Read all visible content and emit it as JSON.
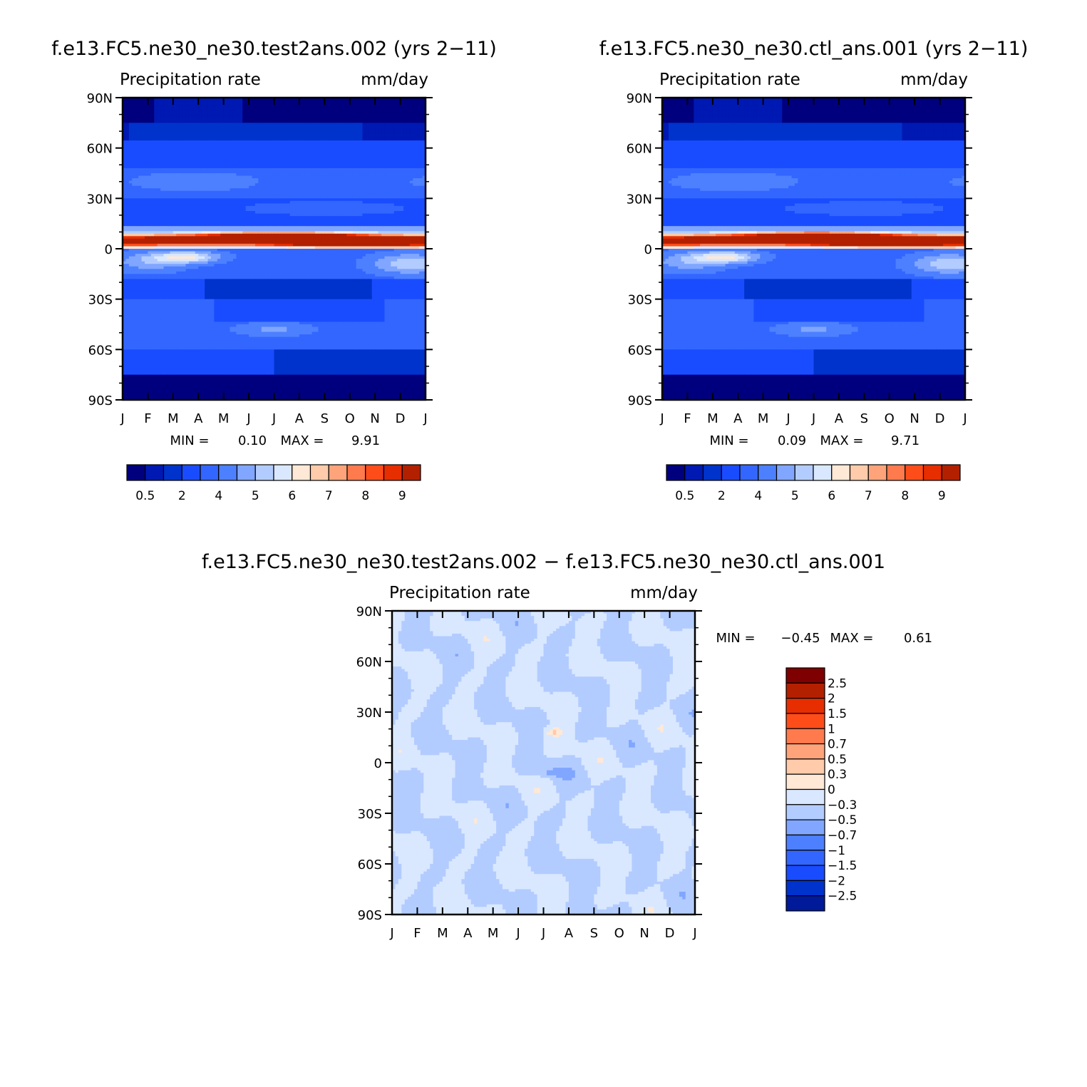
{
  "chart_data": [
    {
      "type": "heatmap",
      "title": "f.e13.FC5.ne30_ne30.test2ans.002 (yrs 2−11)",
      "left_label": "Precipitation rate",
      "right_label": "mm/day",
      "x_ticks": [
        "J",
        "F",
        "M",
        "A",
        "M",
        "J",
        "J",
        "A",
        "S",
        "O",
        "N",
        "D",
        "J"
      ],
      "y_ticks": [
        "90N",
        "60N",
        "30N",
        "0",
        "30S",
        "60S",
        "90S"
      ],
      "ylim": [
        -90,
        90
      ],
      "min_label": "MIN =",
      "min_value": "0.10",
      "max_label": "MAX =",
      "max_value": "9.91",
      "levels": [
        0.5,
        1,
        2,
        3,
        4,
        4.5,
        5,
        5.5,
        6,
        6.5,
        7,
        7.5,
        8,
        8.5,
        9
      ],
      "colorbar_labels": [
        "0.5",
        "2",
        "4",
        "5",
        "6",
        "7",
        "8",
        "9"
      ],
      "features": {
        "itcz_peak_value": 9.91,
        "itcz_peak_month": "Aug",
        "itcz_lat_N": 5
      },
      "variant": "test"
    },
    {
      "type": "heatmap",
      "title": "f.e13.FC5.ne30_ne30.ctl_ans.001 (yrs 2−11)",
      "left_label": "Precipitation rate",
      "right_label": "mm/day",
      "x_ticks": [
        "J",
        "F",
        "M",
        "A",
        "M",
        "J",
        "J",
        "A",
        "S",
        "O",
        "N",
        "D",
        "J"
      ],
      "y_ticks": [
        "90N",
        "60N",
        "30N",
        "0",
        "30S",
        "60S",
        "90S"
      ],
      "ylim": [
        -90,
        90
      ],
      "min_label": "MIN =",
      "min_value": "0.09",
      "max_label": "MAX =",
      "max_value": "9.71",
      "levels": [
        0.5,
        1,
        2,
        3,
        4,
        4.5,
        5,
        5.5,
        6,
        6.5,
        7,
        7.5,
        8,
        8.5,
        9
      ],
      "colorbar_labels": [
        "0.5",
        "2",
        "4",
        "5",
        "6",
        "7",
        "8",
        "9"
      ],
      "features": {
        "itcz_peak_value": 9.71,
        "itcz_peak_month": "Jul",
        "itcz_lat_N": 5
      },
      "variant": "ctl"
    },
    {
      "type": "heatmap",
      "title": "f.e13.FC5.ne30_ne30.test2ans.002 − f.e13.FC5.ne30_ne30.ctl_ans.001",
      "left_label": "Precipitation rate",
      "right_label": "mm/day",
      "x_ticks": [
        "J",
        "F",
        "M",
        "A",
        "M",
        "J",
        "J",
        "A",
        "S",
        "O",
        "N",
        "D",
        "J"
      ],
      "y_ticks": [
        "90N",
        "60N",
        "30N",
        "0",
        "30S",
        "60S",
        "90S"
      ],
      "ylim": [
        -90,
        90
      ],
      "min_label": "MIN =",
      "min_value": "−0.45",
      "max_label": "MAX =",
      "max_value": "0.61",
      "levels": [
        -2.5,
        -2,
        -1.5,
        -1,
        -0.7,
        -0.5,
        -0.3,
        0,
        0.3,
        0.5,
        0.7,
        1,
        1.5,
        2,
        2.5
      ],
      "colorbar_labels": [
        "2.5",
        "2",
        "1.5",
        "1",
        "0.7",
        "0.5",
        "0.3",
        "0",
        "−0.3",
        "−0.5",
        "−0.7",
        "−1",
        "−1.5",
        "−2",
        "−2.5"
      ],
      "variant": "diff"
    }
  ],
  "palettes": {
    "precip": [
      "#00007f",
      "#0019b2",
      "#0033cc",
      "#1a4cff",
      "#3366ff",
      "#4d80ff",
      "#80a6ff",
      "#b3ccff",
      "#d9e8ff",
      "#ffe8d6",
      "#ffcbaa",
      "#ffa37a",
      "#ff7a4d",
      "#ff4d1a",
      "#e62e00",
      "#b32000",
      "#7f0000"
    ],
    "diff": [
      "#00007f",
      "#001a99",
      "#0033cc",
      "#1a4cff",
      "#3366ff",
      "#4d80ff",
      "#80a6ff",
      "#b3ccff",
      "#d9e8ff",
      "#ffe8d6",
      "#ffcbaa",
      "#ffa37a",
      "#ff7a4d",
      "#ff4d1a",
      "#e62e00",
      "#b32000",
      "#7f0000"
    ]
  }
}
